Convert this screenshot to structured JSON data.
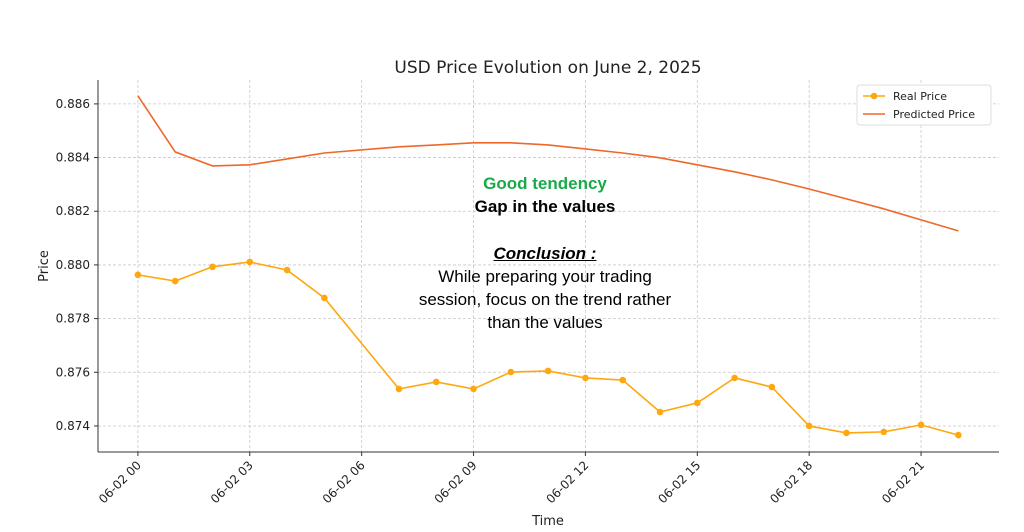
{
  "chart_data": {
    "type": "line",
    "title": "USD Price Evolution on June 2, 2025",
    "x_label": "Time",
    "y_label": "Price",
    "x": [
      0,
      1,
      2,
      3,
      4,
      5,
      7,
      8,
      9,
      10,
      11,
      12,
      13,
      14,
      15,
      16,
      17,
      18,
      19,
      20,
      21,
      22
    ],
    "series": [
      {
        "name": "Real Price",
        "color": "#ffa70f",
        "marker": true,
        "values": [
          0.87963,
          0.8794,
          0.87993,
          0.88011,
          0.87981,
          0.87877,
          0.87538,
          0.87564,
          0.87538,
          0.87601,
          0.87605,
          0.87579,
          0.87571,
          0.87452,
          0.87486,
          0.87579,
          0.87545,
          0.874,
          0.87374,
          0.87378,
          0.87404,
          0.87366
        ]
      },
      {
        "name": "Predicted Price",
        "color": "#f0672a",
        "marker": false,
        "values": [
          0.8863,
          0.88421,
          0.88369,
          0.88373,
          0.88395,
          0.88417,
          0.8844,
          0.88447,
          0.88455,
          0.88455,
          0.88447,
          0.88432,
          0.88417,
          0.88399,
          0.88373,
          0.88347,
          0.88317,
          0.88283,
          0.88246,
          0.88209,
          0.88168,
          0.88127
        ]
      }
    ],
    "xlim": [
      -1.07,
      23.09
    ],
    "xticks": [
      {
        "value": 0,
        "label": "06-02 00"
      },
      {
        "value": 3,
        "label": "06-02 03"
      },
      {
        "value": 6,
        "label": "06-02 06"
      },
      {
        "value": 9,
        "label": "06-02 09"
      },
      {
        "value": 12,
        "label": "06-02 12"
      },
      {
        "value": 15,
        "label": "06-02 15"
      },
      {
        "value": 18,
        "label": "06-02 18"
      },
      {
        "value": 21,
        "label": "06-02 21"
      }
    ],
    "ylim": [
      0.87303,
      0.88689
    ],
    "yticks": [
      0.874,
      0.876,
      0.878,
      {
        "value": 0.88,
        "label": "0.880"
      },
      0.882,
      0.884,
      0.886
    ],
    "grid": true,
    "legend": "upper right",
    "annotations": [
      {
        "text": "Good tendency",
        "color": "#1aaa4a"
      },
      {
        "text": "Gap in the values",
        "color": "#000000"
      },
      {
        "text": "Conclusion :",
        "color": "#000000"
      },
      {
        "text": "While preparing your trading session, focus on the trend rather than the values",
        "color": "#000000"
      }
    ]
  }
}
